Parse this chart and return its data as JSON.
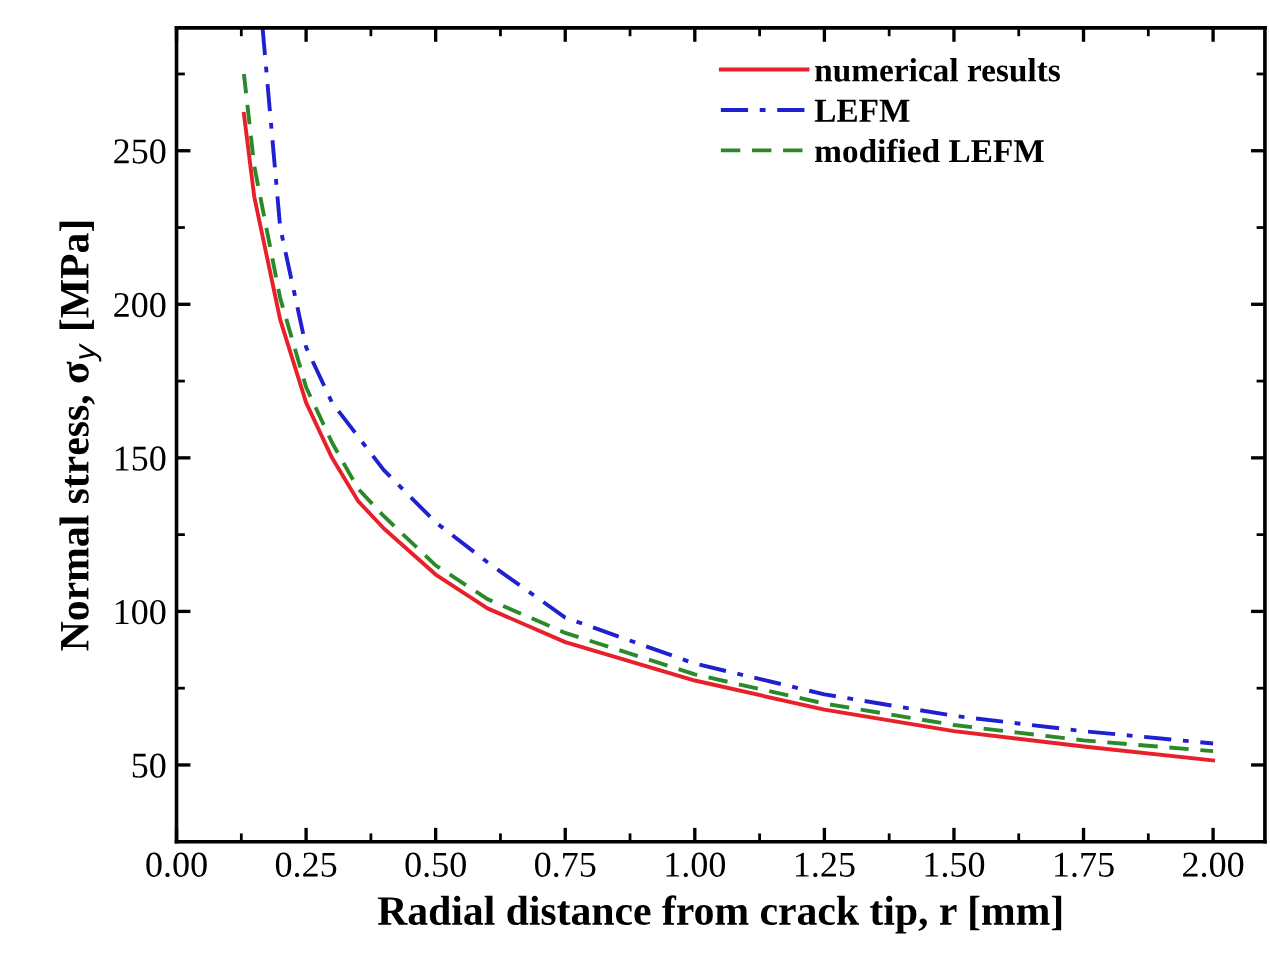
{
  "chart_data": {
    "type": "line",
    "xlabel": "Radial distance from crack tip, r [mm]",
    "ylabel": "Normal stress, σ$_{y}$ [MPa]",
    "xlim": [
      0,
      2.1
    ],
    "ylim": [
      25,
      290
    ],
    "xticks": [
      {
        "value": 0,
        "label": "0.00"
      },
      {
        "value": 0.25,
        "label": "0.25"
      },
      {
        "value": 0.5,
        "label": "0.50"
      },
      {
        "value": 0.75,
        "label": "0.75"
      },
      {
        "value": 1,
        "label": "1.00"
      },
      {
        "value": 1.25,
        "label": "1.25"
      },
      {
        "value": 1.5,
        "label": "1.50"
      },
      {
        "value": 1.75,
        "label": "1.75"
      },
      {
        "value": 2,
        "label": "2.00"
      }
    ],
    "yticks": [
      50,
      100,
      150,
      200,
      250
    ],
    "grid": false,
    "legend": "top right",
    "series": [
      {
        "name": "numerical results",
        "color": "#e8202a",
        "line_style": "solid",
        "x": [
          0.13,
          0.15,
          0.2,
          0.25,
          0.3,
          0.35,
          0.4,
          0.5,
          0.6,
          0.75,
          1.0,
          1.25,
          1.5,
          1.75,
          2.0
        ],
        "values": [
          262,
          235,
          195,
          168,
          150,
          136,
          127,
          112,
          101,
          90,
          77.5,
          68,
          61,
          56,
          51.5
        ]
      },
      {
        "name": "LEFM",
        "color": "#2020d0",
        "line_style": "dashdot",
        "x": [
          0.166,
          0.2,
          0.25,
          0.3,
          0.35,
          0.4,
          0.5,
          0.6,
          0.75,
          1.0,
          1.25,
          1.5,
          1.75,
          2.0
        ],
        "values": [
          290,
          225,
          186,
          168,
          157,
          146,
          129,
          116,
          98,
          83,
          73,
          66,
          61,
          57
        ]
      },
      {
        "name": "modified LEFM",
        "color": "#2a8a2a",
        "line_style": "dashed",
        "x": [
          0.13,
          0.15,
          0.2,
          0.25,
          0.3,
          0.35,
          0.4,
          0.5,
          0.6,
          0.75,
          1.0,
          1.25,
          1.5,
          1.75,
          2.0
        ],
        "values": [
          275,
          245,
          202,
          173,
          155,
          140,
          131,
          115,
          104,
          93,
          79.5,
          70,
          63,
          58,
          54.5
        ]
      }
    ]
  }
}
